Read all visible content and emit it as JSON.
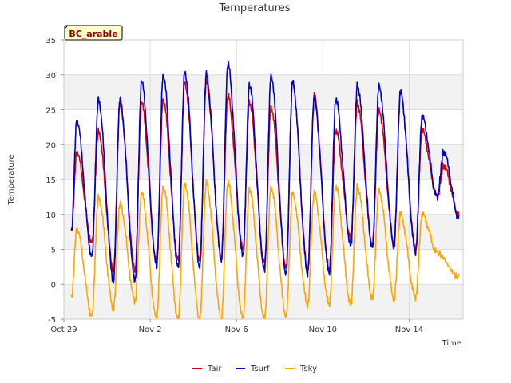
{
  "chart_data": {
    "type": "line",
    "title": "Temperatures",
    "badge": "BC_arable",
    "xlabel": "Time",
    "ylabel": "Temperature",
    "x_range_days": [
      0,
      18.5
    ],
    "x_ticks": [
      {
        "day": 0,
        "label": "Oct 29"
      },
      {
        "day": 4,
        "label": "Nov 2"
      },
      {
        "day": 8,
        "label": "Nov 6"
      },
      {
        "day": 12,
        "label": "Nov 10"
      },
      {
        "day": 16,
        "label": "Nov 14"
      }
    ],
    "ylim": [
      -5,
      35
    ],
    "y_ticks": [
      -5,
      0,
      5,
      10,
      15,
      20,
      25,
      30,
      35
    ],
    "grid": true,
    "legend_position": "bottom-center",
    "series": [
      {
        "name": "Tair",
        "color": "#dd0000",
        "first_day": 0.35,
        "last_day": 17.55,
        "start_value": 7.5,
        "end_value": 8.0,
        "daily_min": [
          3.0,
          6.0,
          2.0,
          2.0,
          3.0,
          3.5,
          3.5,
          4.0,
          5.0,
          3.0,
          2.5,
          2.0,
          2.0,
          6.5,
          5.5,
          6.0,
          5.0,
          12.5,
          10.0
        ],
        "daily_max": [
          19.0,
          22.0,
          26.0,
          26.0,
          26.5,
          29.0,
          29.0,
          27.0,
          26.0,
          25.5,
          29.0,
          27.0,
          22.0,
          26.0,
          25.0,
          27.5,
          22.0,
          17.0
        ]
      },
      {
        "name": "Tsurf",
        "color": "#0000cc",
        "first_day": 0.35,
        "last_day": 17.55,
        "start_value": 7.5,
        "end_value": 7.5,
        "daily_min": [
          1.5,
          4.0,
          0.5,
          0.5,
          2.5,
          2.5,
          2.5,
          3.5,
          4.0,
          2.0,
          1.5,
          1.5,
          1.5,
          5.5,
          5.5,
          5.5,
          4.5,
          12.5,
          9.5
        ],
        "daily_max": [
          23.5,
          26.5,
          26.5,
          29.0,
          30.0,
          30.5,
          30.0,
          31.5,
          28.5,
          30.0,
          29.0,
          26.5,
          26.5,
          28.5,
          28.5,
          27.5,
          24.0,
          19.0
        ]
      },
      {
        "name": "Tsky",
        "color": "#ffa500",
        "first_day": 0.35,
        "last_day": 17.55,
        "start_value": -2.0,
        "end_value": 0.5,
        "daily_min": [
          -4.5,
          -4.5,
          -3.5,
          -2.5,
          -5.0,
          -5.0,
          -5.0,
          -5.0,
          -5.0,
          -5.0,
          -4.5,
          -3.0,
          -3.0,
          -3.0,
          -2.0,
          -2.0,
          -2.0,
          4.5,
          1.0
        ],
        "daily_max": [
          8.0,
          12.5,
          11.5,
          13.0,
          14.0,
          14.5,
          14.5,
          14.5,
          13.5,
          14.0,
          13.0,
          13.0,
          14.0,
          14.0,
          13.5,
          10.0,
          10.0
        ]
      }
    ]
  }
}
